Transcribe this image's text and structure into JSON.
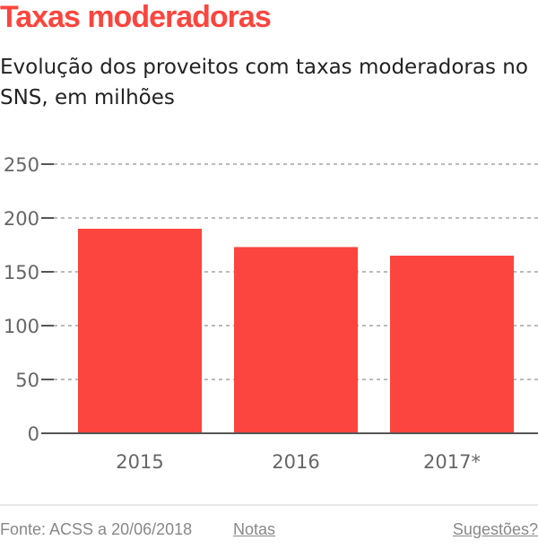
{
  "chart_data": {
    "type": "bar",
    "title": "Taxas moderadoras",
    "subtitle": "Evolução dos proveitos com taxas moderadoras no SNS, em milhões",
    "categories": [
      "2015",
      "2016",
      "2017*"
    ],
    "values": [
      190,
      173,
      165
    ],
    "ylim": [
      0,
      250
    ],
    "yticks": [
      0,
      50,
      100,
      150,
      200,
      250
    ],
    "grid": true,
    "bar_color": "#fc453e"
  },
  "footer": {
    "source": "Fonte: ACSS a 20/06/2018",
    "notes_link": "Notas",
    "suggestions_link": "Sugestões?"
  }
}
